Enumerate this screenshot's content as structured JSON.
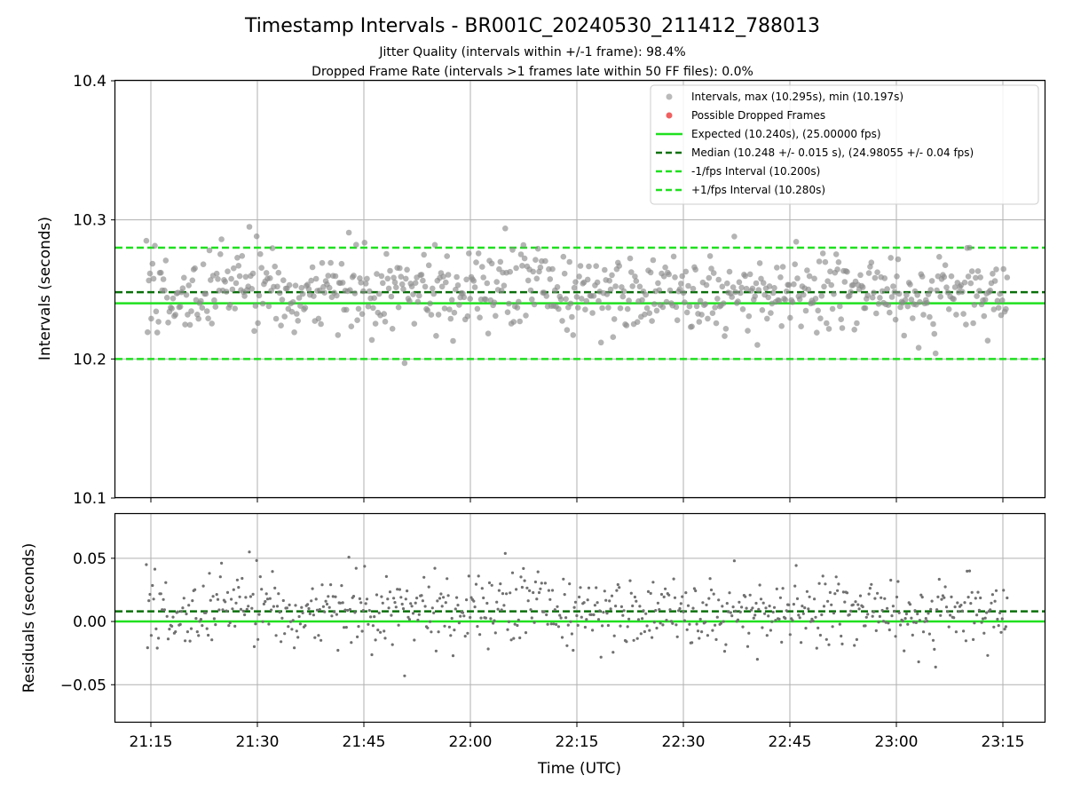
{
  "header": {
    "title": "Timestamp Intervals - BR001C_20240530_211412_788013",
    "subtitle1": "Jitter Quality (intervals within +/-1 frame): 98.4%",
    "subtitle2": "Dropped Frame Rate (intervals >1 frames late within 50 FF files): 0.0%"
  },
  "colors": {
    "points": "#8c8c8c",
    "residual_points": "#707070",
    "dropped": "#f06060",
    "expected": "#1fe01f",
    "median": "#0a700a",
    "interval": "#1fe01f",
    "grid": "#b0b0b0"
  },
  "chart_data": [
    {
      "type": "scatter",
      "panel": "intervals",
      "ylabel": "Intervals (seconds)",
      "ylim": [
        10.1,
        10.4
      ],
      "yticks": [
        "10.1",
        "10.2",
        "10.3",
        "10.4"
      ],
      "xlim": [
        "21:10",
        "23:21"
      ],
      "xticks": [
        "21:15",
        "21:30",
        "21:45",
        "22:00",
        "22:15",
        "22:30",
        "22:45",
        "23:00",
        "23:15"
      ],
      "grid": true,
      "legend_position": "top-right",
      "legend": [
        "Intervals, max (10.295s), min (10.197s)",
        "Possible Dropped Frames",
        "Expected (10.240s), (25.00000 fps)",
        "Median (10.248 +/- 0.015 s), (24.98055 +/- 0.04 fps)",
        "-1/fps Interval (10.200s)",
        "+1/fps Interval (10.280s)"
      ],
      "lines": {
        "expected": 10.24,
        "median": 10.248,
        "minus_1fps": 10.2,
        "plus_1fps": 10.28
      },
      "series": [
        {
          "name": "Intervals",
          "x_start": "21:14:22",
          "x_end": "23:15:36",
          "count": 711,
          "median": 10.248,
          "std": 0.015,
          "max": 10.295,
          "min": 10.197
        },
        {
          "name": "Possible Dropped Frames",
          "count": 0
        }
      ]
    },
    {
      "type": "scatter",
      "panel": "residuals",
      "ylabel": "Residuals (seconds)",
      "xlabel": "Time (UTC)",
      "ylim": [
        -0.08,
        0.085
      ],
      "yticks": [
        "−0.05",
        "0.00",
        "0.05"
      ],
      "xticks": [
        "21:15",
        "21:30",
        "21:45",
        "22:00",
        "22:15",
        "22:30",
        "22:45",
        "23:00",
        "23:15"
      ],
      "grid": true,
      "lines": {
        "zero": 0.0,
        "median_offset": 0.008
      },
      "series": [
        {
          "name": "Residuals",
          "reference": 10.24,
          "max": 0.055,
          "min": -0.043
        }
      ]
    }
  ]
}
